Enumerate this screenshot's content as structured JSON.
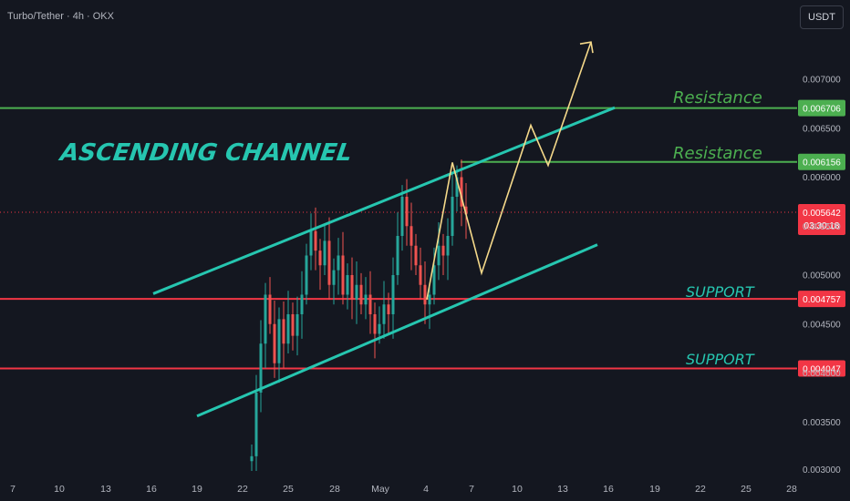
{
  "header": {
    "symbol": "Turbo/Tether · 4h · OKX"
  },
  "currency_button": "USDT",
  "colors": {
    "background": "#141720",
    "channel": "#26c6b0",
    "resistance": "#4caf50",
    "support": "#f23645",
    "projection": "#f5d98a",
    "candle_up": "#26a69a",
    "candle_down": "#ef5350"
  },
  "annotations": {
    "channel_title": "ASCENDING CHANNEL",
    "resistance_1": "Resistance",
    "resistance_2": "Resistance",
    "support_1": "SUPPORT",
    "support_2": "SUPPORT"
  },
  "chart_data": {
    "type": "candlestick",
    "y_axis": {
      "ticks": [
        0.0035,
        0.004,
        0.0045,
        0.005,
        0.0055,
        0.006,
        0.0065,
        0.007
      ],
      "ylim": [
        0.003,
        0.0075
      ],
      "position": "right"
    },
    "x_axis": {
      "ticks": [
        "7",
        "10",
        "13",
        "16",
        "19",
        "22",
        "25",
        "28",
        "May",
        "4",
        "7",
        "10",
        "13",
        "16",
        "19",
        "22",
        "25",
        "28"
      ]
    },
    "levels": [
      {
        "kind": "resistance",
        "price": 0.006706,
        "label": "0.006706"
      },
      {
        "kind": "resistance",
        "price": 0.006156,
        "label": "0.006156"
      },
      {
        "kind": "support",
        "price": 0.004757,
        "label": "0.004757"
      },
      {
        "kind": "support",
        "price": 0.004047,
        "label": "0.004047"
      }
    ],
    "current_price": {
      "price": 0.005642,
      "label": "0.005642",
      "countdown": "03:30:18"
    },
    "channel": {
      "upper": [
        [
          16,
          0.00481
        ],
        [
          15,
          0.00671
        ]
      ],
      "lower": [
        [
          19,
          0.00356
        ],
        [
          15,
          0.00531
        ]
      ]
    },
    "projection_path": [
      [
        4,
        0.00475
      ],
      [
        6,
        0.00615
      ],
      [
        7.5,
        0.00502
      ],
      [
        11.5,
        0.00653
      ],
      [
        12.5,
        0.00612
      ],
      [
        14.5,
        0.00738
      ]
    ],
    "candles_close": [
      0.00315,
      0.0038,
      0.0043,
      0.0048,
      0.0045,
      0.0041,
      0.00455,
      0.0043,
      0.0046,
      0.00438,
      0.0046,
      0.0048,
      0.0052,
      0.00545,
      0.00525,
      0.0051,
      0.00535,
      0.0049,
      0.00505,
      0.0052,
      0.0048,
      0.005,
      0.00475,
      0.0049,
      0.0047,
      0.0048,
      0.0046,
      0.0044,
      0.0045,
      0.0047,
      0.0046,
      0.005,
      0.0054,
      0.0058,
      0.0055,
      0.0053,
      0.0051,
      0.0049,
      0.0047,
      0.0048,
      0.0051,
      0.0053,
      0.0052,
      0.0054,
      0.0058,
      0.006,
      0.0057,
      0.00562
    ]
  }
}
